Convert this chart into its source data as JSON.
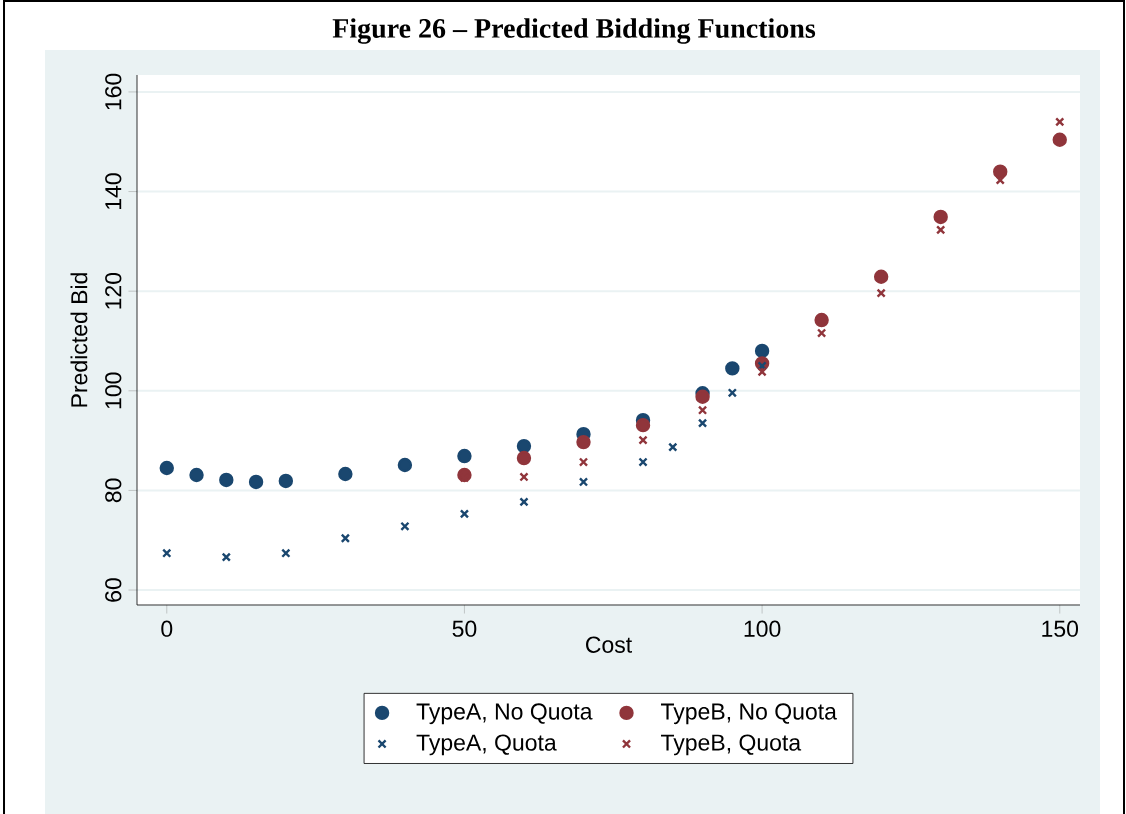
{
  "chart_data": {
    "type": "scatter",
    "title": "Figure 26 – Predicted Bidding Functions",
    "xlabel": "Cost",
    "ylabel": "Predicted Bid",
    "xlim": [
      -5,
      153.4
    ],
    "ylim": [
      57,
      163.4
    ],
    "xticks": [
      0,
      50,
      100,
      150
    ],
    "yticks": [
      60,
      80,
      100,
      120,
      140,
      160
    ],
    "grid": "y",
    "legend": "bottom",
    "series": [
      {
        "name": "TypeA, No Quota",
        "color": "#1a476f",
        "marker": "circle",
        "x": [
          0,
          5,
          10,
          15,
          20,
          30,
          40,
          50,
          60,
          70,
          80,
          90,
          95,
          100
        ],
        "values": [
          84.5,
          83.1,
          82.1,
          81.7,
          81.9,
          83.3,
          85.1,
          86.9,
          88.9,
          91.3,
          94.1,
          99.5,
          104.5,
          108
        ]
      },
      {
        "name": "TypeB, No Quota",
        "color": "#90353b",
        "marker": "circle",
        "x": [
          50,
          60,
          70,
          80,
          90,
          100,
          110,
          120,
          130,
          140,
          150
        ],
        "values": [
          83.1,
          86.5,
          89.7,
          93.1,
          98.8,
          105.5,
          114.2,
          122.9,
          134.9,
          144,
          150.4
        ]
      },
      {
        "name": "TypeA, Quota",
        "color": "#1a476f",
        "marker": "cross",
        "x": [
          0,
          10,
          20,
          30,
          40,
          50,
          60,
          70,
          80,
          85,
          90,
          95,
          100
        ],
        "values": [
          67.4,
          66.6,
          67.4,
          70.4,
          72.8,
          75.3,
          77.7,
          81.7,
          85.7,
          88.7,
          93.5,
          99.6,
          105
        ]
      },
      {
        "name": "TypeB, Quota",
        "color": "#90353b",
        "marker": "cross",
        "x": [
          50,
          60,
          70,
          80,
          90,
          100,
          110,
          120,
          130,
          140,
          150
        ],
        "values": [
          82.5,
          82.7,
          85.7,
          90.1,
          96.1,
          103.8,
          111.6,
          119.6,
          132.3,
          142.3,
          154
        ]
      }
    ]
  }
}
